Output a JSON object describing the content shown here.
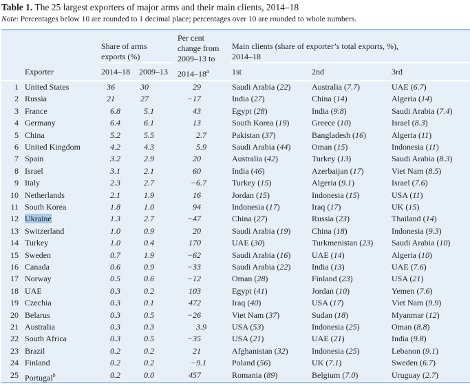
{
  "title": {
    "label": "Table 1.",
    "text": "The 25 largest exporters of major arms and their main clients, 2014–18"
  },
  "note": {
    "label": "Note",
    "text": ": Percentages below 10 are rounded to 1 decimal place; percentages over 10 are rounded to whole numbers."
  },
  "headers": {
    "exporter": "Exporter",
    "share_group": "Share of arms exports (%)",
    "share_1": "2014–18",
    "share_2": "2009–13",
    "change_line1": "Per cent",
    "change_line2": "change from",
    "change_line3": "2009–13 to",
    "change_line4": "2014–18",
    "change_footnote": "a",
    "clients_group": "Main clients (share of exporter’s total exports, %),",
    "clients_group_2": "2014–18",
    "client_1": "1st",
    "client_2": "2nd",
    "client_3": "3rd"
  },
  "highlight_color": "#a9cbe8",
  "rows": [
    {
      "rank": "1",
      "exporter": "United States",
      "s1": "36",
      "s2": "30",
      "chg": "29",
      "c1": "Saudi Arabia",
      "p1": "22",
      "c2": "Australia",
      "p2": "7.7",
      "c3": "UAE",
      "p3": "6.7"
    },
    {
      "rank": "2",
      "exporter": "Russia",
      "s1": "21",
      "s2": "27",
      "chg": "−17",
      "c1": "India",
      "p1": "27",
      "c2": "China",
      "p2": "14",
      "c3": "Algeria",
      "p3": "14"
    },
    {
      "rank": "3",
      "exporter": "France",
      "s1": "6.8",
      "s2": "5.1",
      "chg": "43",
      "c1": "Egypt",
      "p1": "28",
      "c2": "India",
      "p2": "9.8",
      "c3": "Saudi Arabia",
      "p3": "7.4"
    },
    {
      "rank": "4",
      "exporter": "Germany",
      "s1": "6.4",
      "s2": "6.1",
      "chg": "13",
      "c1": "South Korea",
      "p1": "19",
      "c2": "Greece",
      "p2": "10",
      "c3": "Israel",
      "p3": "8.3"
    },
    {
      "rank": "5",
      "exporter": "China",
      "s1": "5.2",
      "s2": "5.5",
      "chg": "2.7",
      "c1": "Pakistan",
      "p1": "37",
      "c2": "Bangladesh",
      "p2": "16",
      "c3": "Algeria",
      "p3": "11"
    },
    {
      "rank": "6",
      "exporter": "United Kingdom",
      "s1": "4.2",
      "s2": "4.3",
      "chg": "5.9",
      "c1": "Saudi Arabia",
      "p1": "44",
      "c2": "Oman",
      "p2": "15",
      "c3": "Indonesia",
      "p3": "11"
    },
    {
      "rank": "7",
      "exporter": "Spain",
      "s1": "3.2",
      "s2": "2.9",
      "chg": "20",
      "c1": "Australia",
      "p1": "42",
      "c2": "Turkey",
      "p2": "13",
      "c3": "Saudi Arabia",
      "p3": "8.3"
    },
    {
      "rank": "8",
      "exporter": "Israel",
      "s1": "3.1",
      "s2": "2.1",
      "chg": "60",
      "c1": "India",
      "p1": "46",
      "c2": "Azerbaijan",
      "p2": "17",
      "c3": "Viet Nam",
      "p3": "8.5"
    },
    {
      "rank": "9",
      "exporter": "Italy",
      "s1": "2.3",
      "s2": "2.7",
      "chg": "−6.7",
      "c1": "Turkey",
      "p1": "15",
      "c2": "Algeria",
      "p2": "9.1",
      "c3": "Israel",
      "p3": "7.6"
    },
    {
      "rank": "10",
      "exporter": "Netherlands",
      "s1": "2.1",
      "s2": "1.9",
      "chg": "16",
      "c1": "Jordan",
      "p1": "15",
      "c2": "Indonesia",
      "p2": "15",
      "c3": "USA",
      "p3": "11"
    },
    {
      "rank": "11",
      "exporter": "South Korea",
      "s1": "1.8",
      "s2": "1.0",
      "chg": "94",
      "c1": "Indonesia",
      "p1": "17",
      "c2": "Iraq",
      "p2": "17",
      "c3": "UK",
      "p3": "15"
    },
    {
      "rank": "12",
      "exporter": "Ukraine",
      "s1": "1.3",
      "s2": "2.7",
      "chg": "−47",
      "c1": "China",
      "p1": "27",
      "c2": "Russia",
      "p2": "23",
      "c3": "Thailand",
      "p3": "14",
      "selected": true
    },
    {
      "rank": "13",
      "exporter": "Switzerland",
      "s1": "1.0",
      "s2": "0.9",
      "chg": "20",
      "c1": "Saudi Arabia",
      "p1": "19",
      "c2": "China",
      "p2": "18",
      "c3": "Indonesia",
      "p3": "9.3"
    },
    {
      "rank": "14",
      "exporter": "Turkey",
      "s1": "1.0",
      "s2": "0.4",
      "chg": "170",
      "c1": "UAE",
      "p1": "30",
      "c2": "Turkmenistan",
      "p2": "23",
      "c3": "Saudi Arabia",
      "p3": "10"
    },
    {
      "rank": "15",
      "exporter": "Sweden",
      "s1": "0.7",
      "s2": "1.9",
      "chg": "−62",
      "c1": "Saudi Arabia",
      "p1": "16",
      "c2": "UAE",
      "p2": "14",
      "c3": "Algeria",
      "p3": "10"
    },
    {
      "rank": "16",
      "exporter": "Canada",
      "s1": "0.6",
      "s2": "0.9",
      "chg": "−33",
      "c1": "Saudi Arabia",
      "p1": "22",
      "c2": "India",
      "p2": "13",
      "c3": "UAE",
      "p3": "7.6"
    },
    {
      "rank": "17",
      "exporter": "Norway",
      "s1": "0.5",
      "s2": "0.6",
      "chg": "−12",
      "c1": "Oman",
      "p1": "28",
      "c2": "Finland",
      "p2": "23",
      "c3": "USA",
      "p3": "21"
    },
    {
      "rank": "18",
      "exporter": "UAE",
      "s1": "0.3",
      "s2": "0.2",
      "chg": "103",
      "c1": "Egypt",
      "p1": "41",
      "c2": "Jordan",
      "p2": "10",
      "c3": "Yemen",
      "p3": "7.6"
    },
    {
      "rank": "19",
      "exporter": "Czechia",
      "s1": "0.3",
      "s2": "0.1",
      "chg": "472",
      "c1": "Iraq",
      "p1": "40",
      "c2": "USA",
      "p2": "17",
      "c3": "Viet Nam",
      "p3": "9.9"
    },
    {
      "rank": "20",
      "exporter": "Belarus",
      "s1": "0.3",
      "s2": "0.5",
      "chg": "−26",
      "c1": "Viet Nam",
      "p1": "37",
      "c2": "Sudan",
      "p2": "18",
      "c3": "Myanmar",
      "p3": "12"
    },
    {
      "rank": "21",
      "exporter": "Australia",
      "s1": "0.3",
      "s2": "0.3",
      "chg": "3.9",
      "c1": "USA",
      "p1": "53",
      "c2": "Indonesia",
      "p2": "25",
      "c3": "Oman",
      "p3": "8.8"
    },
    {
      "rank": "22",
      "exporter": "South Africa",
      "s1": "0.3",
      "s2": "0.5",
      "chg": "−35",
      "c1": "USA",
      "p1": "21",
      "c2": "UAE",
      "p2": "21",
      "c3": "India",
      "p3": "9.8"
    },
    {
      "rank": "23",
      "exporter": "Brazil",
      "s1": "0.2",
      "s2": "0.2",
      "chg": "21",
      "c1": "Afghanistan",
      "p1": "32",
      "c2": "Indonesia",
      "p2": "25",
      "c3": "Lebanon",
      "p3": "9.1"
    },
    {
      "rank": "24",
      "exporter": "Finland",
      "s1": "0.2",
      "s2": "0.2",
      "chg": "−9.1",
      "c1": "Poland",
      "p1": "56",
      "c2": "UK",
      "p2": "7.1",
      "c3": "Sweden",
      "p3": "6.7"
    },
    {
      "rank": "25",
      "exporter": "Portugal",
      "footnote": "b",
      "s1": "0.2",
      "s2": "0.0",
      "chg": "457",
      "c1": "Romania",
      "p1": "89",
      "c2": "Belgium",
      "p2": "7.0",
      "c3": "Uruguay",
      "p3": "2.7"
    }
  ]
}
